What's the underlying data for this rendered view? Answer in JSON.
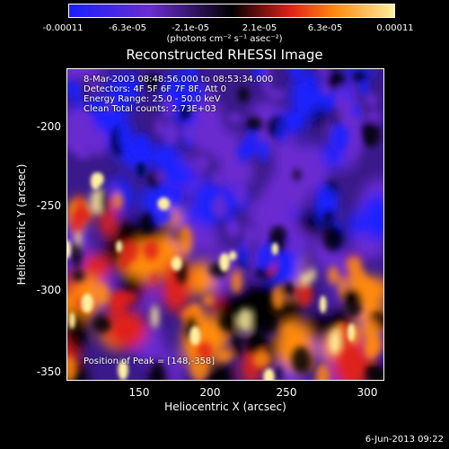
{
  "colorbar": {
    "ticks": [
      "-0.00011",
      "-6.3e-05",
      "-2.1e-05",
      "2.1e-05",
      "6.3e-05",
      "0.00011"
    ],
    "units": "(photons cm⁻² s⁻¹ asec⁻²)"
  },
  "title": "Reconstructed RHESSI Image",
  "info": {
    "line1": "8-Mar-2003 08:48:56.000 to 08:53:34.000",
    "line2": "Detectors: 4F 5F 6F 7F 8F, Att 0",
    "line3": "Energy Range: 25.0 - 50.0 keV",
    "line4": "Clean     Total counts: 2.73E+03",
    "peak": "Position of Peak = [148,-358]"
  },
  "axes": {
    "xlabel": "Heliocentric X (arcsec)",
    "ylabel": "Heliocentric Y (arcsec)",
    "xticks": [
      "150",
      "200",
      "250",
      "300"
    ],
    "yticks": [
      "-200",
      "-250",
      "-300",
      "-350"
    ]
  },
  "footer": "6-Jun-2013 09:22",
  "colors": {
    "blue": "#1a20ff",
    "purple": "#6a2cd0",
    "black": "#000000",
    "red": "#e0201a",
    "orange": "#ff8a10",
    "yellow": "#fff0a0"
  }
}
